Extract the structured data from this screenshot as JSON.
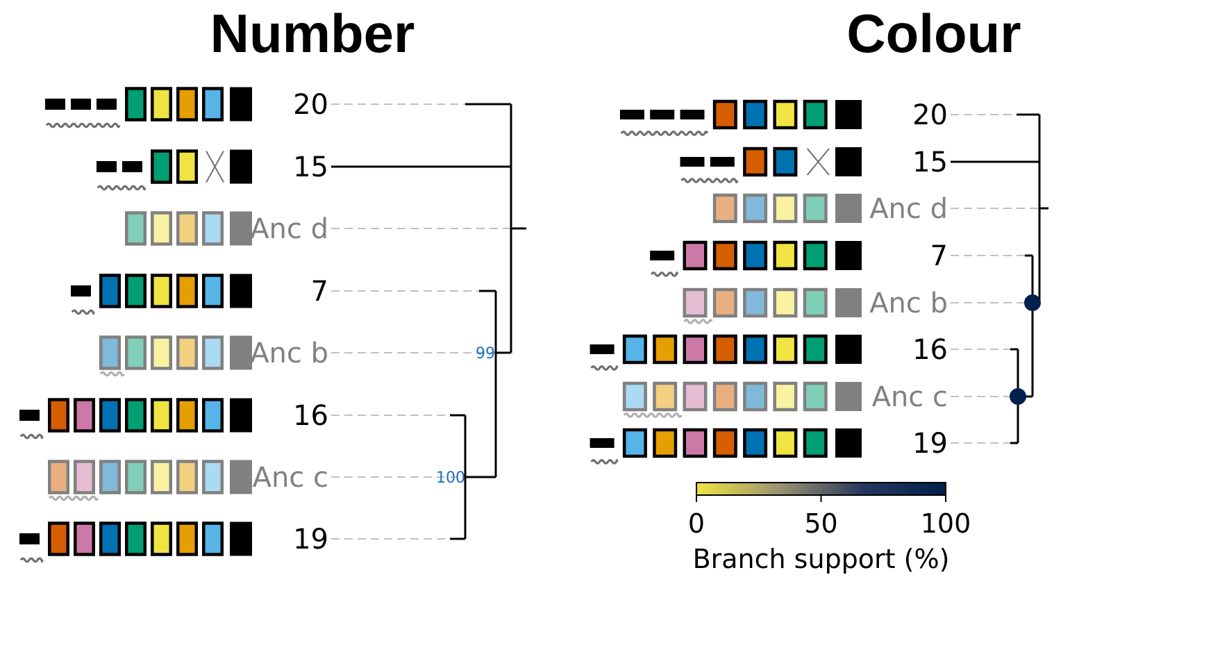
{
  "panels": [
    {
      "title": "Number",
      "tips": [
        {
          "label": "20",
          "ancestral": false,
          "bars": 3,
          "states": [
            "green",
            "yellow",
            "orange",
            "skyblue"
          ],
          "crossed": false
        },
        {
          "label": "15",
          "ancestral": false,
          "bars": 2,
          "states": [
            "green",
            "yellow"
          ],
          "crossed": true
        },
        {
          "label": "Anc d",
          "ancestral": true,
          "bars": 0,
          "states": [
            "green",
            "yellow",
            "orange",
            "skyblue"
          ],
          "crossed": false
        },
        {
          "label": "7",
          "ancestral": false,
          "bars": 1,
          "states": [
            "blue",
            "green",
            "yellow",
            "orange",
            "skyblue"
          ],
          "crossed": false
        },
        {
          "label": "Anc b",
          "ancestral": true,
          "bars": 1,
          "states": [
            "blue",
            "green",
            "yellow",
            "orange",
            "skyblue"
          ],
          "crossed": false
        },
        {
          "label": "16",
          "ancestral": false,
          "bars": 1,
          "states": [
            "vermillion",
            "pink",
            "blue",
            "green",
            "yellow",
            "orange",
            "skyblue"
          ],
          "crossed": false
        },
        {
          "label": "Anc c",
          "ancestral": true,
          "bars": 2,
          "states": [
            "vermillion",
            "pink",
            "blue",
            "green",
            "yellow",
            "orange",
            "skyblue"
          ],
          "crossed": false
        },
        {
          "label": "19",
          "ancestral": false,
          "bars": 1,
          "states": [
            "vermillion",
            "pink",
            "blue",
            "green",
            "yellow",
            "orange",
            "skyblue"
          ],
          "crossed": false
        }
      ],
      "support_labels": [
        {
          "text": "99",
          "node": "Anc b"
        },
        {
          "text": "100",
          "node": "Anc c"
        }
      ]
    },
    {
      "title": "Colour",
      "tips": [
        {
          "label": "20",
          "ancestral": false,
          "bars": 3,
          "states": [
            "vermillion",
            "blue",
            "yellow",
            "green"
          ],
          "crossed": false
        },
        {
          "label": "15",
          "ancestral": false,
          "bars": 2,
          "states": [
            "vermillion",
            "blue"
          ],
          "crossed": true
        },
        {
          "label": "Anc d",
          "ancestral": true,
          "bars": 0,
          "states": [
            "vermillion",
            "blue",
            "yellow",
            "green"
          ],
          "crossed": false
        },
        {
          "label": "7",
          "ancestral": false,
          "bars": 1,
          "states": [
            "pink",
            "vermillion",
            "blue",
            "yellow",
            "green"
          ],
          "crossed": false
        },
        {
          "label": "Anc b",
          "ancestral": true,
          "bars": 1,
          "states": [
            "pink",
            "vermillion",
            "blue",
            "yellow",
            "green"
          ],
          "crossed": false
        },
        {
          "label": "16",
          "ancestral": false,
          "bars": 1,
          "states": [
            "skyblue",
            "orange",
            "pink",
            "vermillion",
            "blue",
            "yellow",
            "green"
          ],
          "crossed": false
        },
        {
          "label": "Anc c",
          "ancestral": true,
          "bars": 2,
          "states": [
            "skyblue",
            "orange",
            "pink",
            "vermillion",
            "blue",
            "yellow",
            "green"
          ],
          "crossed": false
        },
        {
          "label": "19",
          "ancestral": false,
          "bars": 1,
          "states": [
            "skyblue",
            "orange",
            "pink",
            "vermillion",
            "blue",
            "yellow",
            "green"
          ],
          "crossed": false
        }
      ],
      "node_support": [
        {
          "node": "Anc b",
          "support": 100
        },
        {
          "node": "Anc c",
          "support": 100
        }
      ]
    }
  ],
  "colorbar": {
    "title": "Branch support (%)",
    "ticks": [
      "0",
      "50",
      "100"
    ],
    "range": [
      0,
      100
    ],
    "colors": [
      "#f0e442",
      "#9c9272",
      "#27385e",
      "#00204d"
    ]
  },
  "palette": {
    "green": "#009e73",
    "yellow": "#f0e442",
    "orange": "#e69f00",
    "skyblue": "#56b4e9",
    "blue": "#0072b2",
    "vermillion": "#d55e00",
    "pink": "#cc79a7",
    "black": "#000000",
    "ancestral_border": "#808080",
    "ancestral_end": "#808080",
    "dashes": "#c0c0c0",
    "node_marker": "#00204d"
  }
}
